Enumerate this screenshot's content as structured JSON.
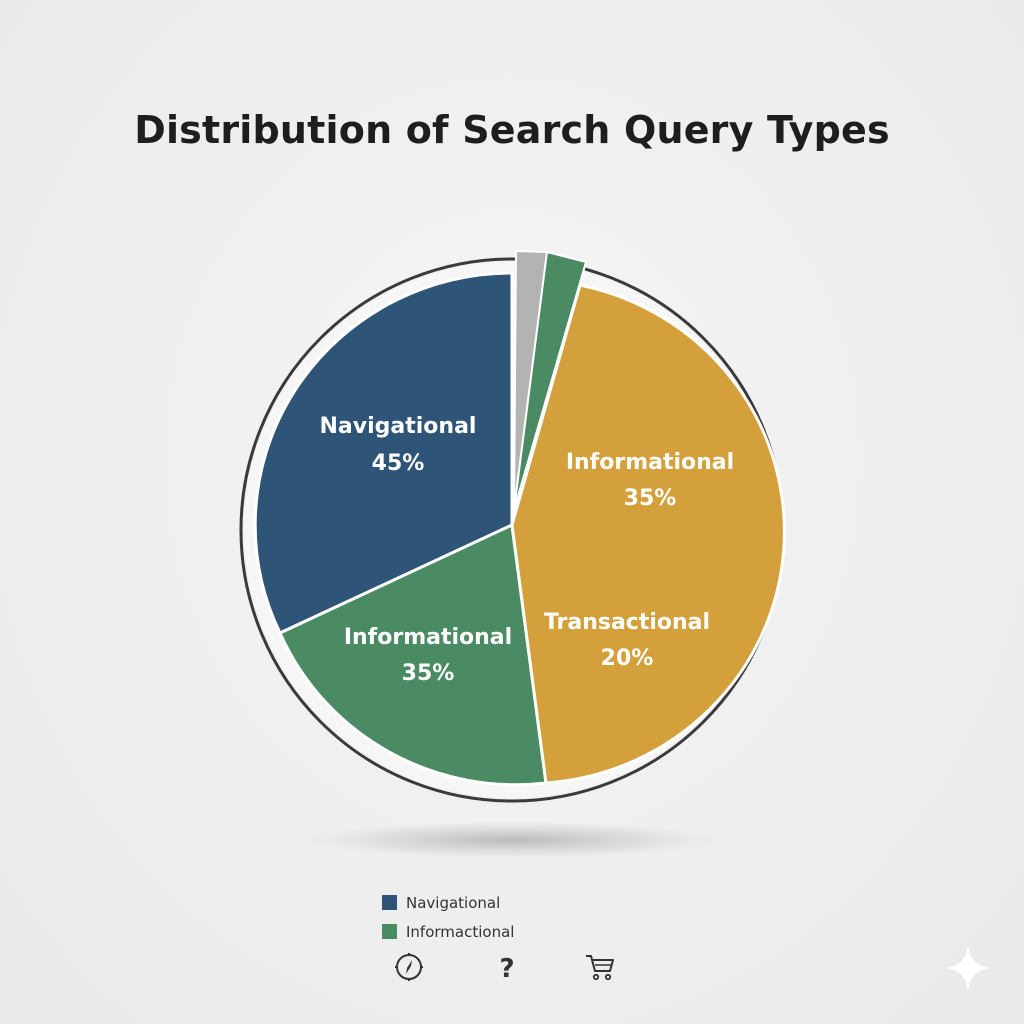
{
  "chart_data": {
    "type": "pie",
    "title": "Distribution of Search Query Types",
    "slices": [
      {
        "label": "Navigational",
        "value_text": "45%",
        "value": 45,
        "color": "#2e5478"
      },
      {
        "label": "Informational",
        "value_text": "35%",
        "value": 35,
        "color": "#4a8b64"
      },
      {
        "label": "Informational",
        "value_text": "35%",
        "value": 35,
        "color": "#d3a03c"
      },
      {
        "label": "Transactional",
        "value_text": "20%",
        "value": 20,
        "color": "#d3a03c"
      },
      {
        "label": "",
        "value_text": "",
        "value": 2,
        "color": "#b3b3b3",
        "exploded": true
      },
      {
        "label": "",
        "value_text": "",
        "value": 2.5,
        "color": "#4a8b64",
        "exploded": true
      }
    ],
    "legend": {
      "placement": "bottom",
      "entries": [
        {
          "label": "Navigational",
          "color": "#2e5478"
        },
        {
          "label": "Informactional",
          "color": "#4a8b64"
        }
      ]
    }
  },
  "icons": [
    "compass-icon",
    "question-mark-icon",
    "shopping-cart-icon"
  ],
  "question_glyph": "?"
}
